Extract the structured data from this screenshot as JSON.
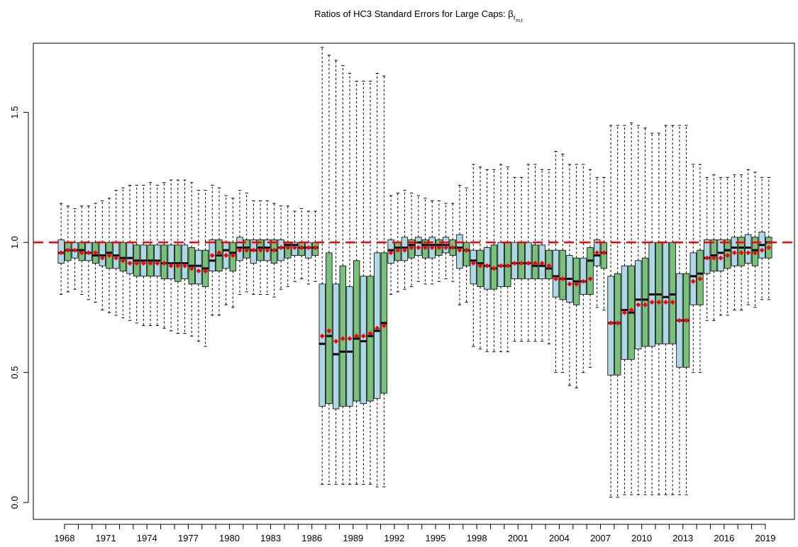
{
  "chart_data": {
    "type": "boxplot",
    "title": "Ratios of HC3 Standard Errors for Large Caps: ",
    "title_symbol": "β",
    "title_subscript": "r",
    "title_subsubscript": "m,t",
    "categories": [
      "1968",
      null,
      null,
      "1971",
      null,
      null,
      "1974",
      null,
      null,
      "1977",
      null,
      null,
      "1980",
      null,
      null,
      "1983",
      null,
      null,
      "1986",
      null,
      null,
      "1989",
      null,
      null,
      "1992",
      null,
      null,
      "1995",
      null,
      null,
      "1998",
      null,
      null,
      "2001",
      null,
      null,
      "2004",
      null,
      null,
      "2007",
      null,
      null,
      "2010",
      null,
      null,
      "2013",
      null,
      null,
      "2016",
      null,
      null,
      "2019"
    ],
    "ylim": [
      -0.065,
      1.766
    ],
    "yticks": [
      {
        "value": 0,
        "label": "0.0"
      },
      0.5,
      {
        "value": 1,
        "label": "1.0"
      },
      1.5
    ],
    "reference_line": 1,
    "reference_color": "#ff0000",
    "mean_color": "#ff0000",
    "series": [
      {
        "color": "#add8e6",
        "q1": [
          0.92,
          0.94,
          0.93,
          0.91,
          0.9,
          0.88,
          0.87,
          0.87,
          0.86,
          0.86,
          0.84,
          0.89,
          0.9,
          0.93,
          0.92,
          0.93,
          0.93,
          0.95,
          0.94,
          0.37,
          0.36,
          0.37,
          0.38,
          0.4,
          0.92,
          0.93,
          0.95,
          0.94,
          0.96,
          0.9,
          0.84,
          0.82,
          0.83,
          0.86,
          0.86,
          0.86,
          0.79,
          0.77,
          0.8,
          0.91,
          0.49,
          0.55,
          0.59,
          0.6,
          0.61,
          0.52,
          0.76,
          0.88,
          0.89,
          0.91,
          0.92,
          0.94
        ],
        "median": [
          0.96,
          0.97,
          0.96,
          0.95,
          0.95,
          0.94,
          0.93,
          0.93,
          0.92,
          0.92,
          0.91,
          0.93,
          0.97,
          0.98,
          0.97,
          0.98,
          0.98,
          0.99,
          0.98,
          0.61,
          0.57,
          0.58,
          0.62,
          0.66,
          0.97,
          0.98,
          1.0,
          0.99,
          0.99,
          0.98,
          0.93,
          0.91,
          0.91,
          0.92,
          0.92,
          0.91,
          0.87,
          0.86,
          0.85,
          0.95,
          0.69,
          0.74,
          0.78,
          0.8,
          0.79,
          0.7,
          0.87,
          0.94,
          0.96,
          0.98,
          0.98,
          0.99
        ],
        "q3": [
          1.01,
          1.0,
          1.0,
          1.0,
          1.0,
          1.0,
          0.99,
          0.99,
          0.99,
          0.99,
          0.97,
          1.01,
          1.0,
          1.02,
          1.01,
          1.01,
          1.01,
          1.0,
          1.0,
          0.84,
          0.84,
          0.83,
          0.87,
          0.96,
          1.01,
          1.02,
          1.02,
          1.02,
          1.02,
          1.03,
          0.97,
          0.98,
          1.0,
          1.0,
          1.0,
          0.99,
          0.97,
          0.95,
          0.94,
          1.01,
          0.87,
          0.91,
          0.93,
          1.0,
          1.0,
          0.88,
          0.96,
          1.01,
          1.01,
          1.02,
          1.03,
          1.04
        ],
        "whislo": [
          0.8,
          0.82,
          0.78,
          0.74,
          0.72,
          0.7,
          0.68,
          0.68,
          0.66,
          0.65,
          0.62,
          0.72,
          0.76,
          0.8,
          0.8,
          0.8,
          0.82,
          0.85,
          0.84,
          0.07,
          0.07,
          0.07,
          0.07,
          0.06,
          0.8,
          0.82,
          0.85,
          0.84,
          0.86,
          0.76,
          0.6,
          0.58,
          0.58,
          0.62,
          0.62,
          0.62,
          0.5,
          0.45,
          0.5,
          0.75,
          0.02,
          0.03,
          0.03,
          0.03,
          0.03,
          0.03,
          0.5,
          0.7,
          0.72,
          0.74,
          0.76,
          0.78
        ],
        "whishi": [
          1.15,
          1.13,
          1.14,
          1.16,
          1.2,
          1.22,
          1.22,
          1.22,
          1.24,
          1.24,
          1.2,
          1.22,
          1.18,
          1.2,
          1.16,
          1.16,
          1.14,
          1.12,
          1.12,
          1.75,
          1.7,
          1.65,
          1.62,
          1.65,
          1.18,
          1.2,
          1.18,
          1.16,
          1.15,
          1.22,
          1.3,
          1.28,
          1.3,
          1.25,
          1.3,
          1.28,
          1.35,
          1.3,
          1.3,
          1.25,
          1.45,
          1.45,
          1.45,
          1.42,
          1.45,
          1.45,
          1.3,
          1.25,
          1.25,
          1.26,
          1.28,
          1.25
        ],
        "mean": [
          0.96,
          0.97,
          0.96,
          0.94,
          0.94,
          0.92,
          0.92,
          0.92,
          0.91,
          0.91,
          0.89,
          0.95,
          0.95,
          0.97,
          0.97,
          0.97,
          0.98,
          0.98,
          0.98,
          0.64,
          0.62,
          0.63,
          0.64,
          0.67,
          0.96,
          0.97,
          0.98,
          0.98,
          0.98,
          0.97,
          0.92,
          0.91,
          0.91,
          0.92,
          0.92,
          0.92,
          0.86,
          0.84,
          0.85,
          0.96,
          0.69,
          0.73,
          0.76,
          0.77,
          0.77,
          0.7,
          0.85,
          0.94,
          0.94,
          0.96,
          0.96,
          0.97
        ]
      },
      {
        "color": "#77c17a",
        "q1": [
          0.93,
          0.93,
          0.92,
          0.9,
          0.89,
          0.87,
          0.87,
          0.86,
          0.85,
          0.84,
          0.83,
          0.89,
          0.89,
          0.94,
          0.93,
          0.92,
          0.94,
          0.95,
          0.95,
          0.38,
          0.37,
          0.39,
          0.39,
          0.42,
          0.93,
          0.94,
          0.94,
          0.95,
          0.95,
          0.91,
          0.83,
          0.82,
          0.83,
          0.86,
          0.86,
          0.86,
          0.78,
          0.76,
          0.8,
          0.9,
          0.49,
          0.55,
          0.6,
          0.61,
          0.61,
          0.52,
          0.76,
          0.89,
          0.9,
          0.91,
          0.91,
          0.94
        ],
        "median": [
          0.97,
          0.97,
          0.95,
          0.96,
          0.94,
          0.93,
          0.93,
          0.92,
          0.92,
          0.91,
          0.9,
          0.95,
          0.96,
          0.98,
          0.98,
          0.97,
          0.99,
          0.98,
          0.98,
          0.64,
          0.58,
          0.63,
          0.64,
          0.69,
          0.98,
          0.99,
          0.99,
          0.99,
          0.98,
          0.97,
          0.92,
          0.9,
          0.91,
          0.92,
          0.91,
          0.9,
          0.86,
          0.85,
          0.93,
          0.96,
          0.69,
          0.73,
          0.78,
          0.8,
          0.8,
          0.7,
          0.88,
          0.95,
          0.97,
          0.98,
          0.97,
          1.0
        ],
        "q3": [
          1.0,
          1.0,
          1.0,
          1.0,
          1.0,
          0.99,
          0.99,
          0.99,
          0.99,
          0.98,
          0.97,
          1.01,
          1.0,
          1.01,
          1.01,
          1.01,
          1.0,
          1.0,
          1.0,
          0.96,
          0.91,
          0.93,
          0.87,
          0.96,
          1.0,
          1.01,
          1.01,
          1.01,
          1.01,
          1.0,
          0.97,
          0.99,
          1.0,
          1.0,
          0.99,
          0.97,
          0.97,
          0.94,
          0.98,
          1.0,
          0.88,
          0.91,
          0.94,
          1.0,
          1.0,
          0.88,
          0.97,
          1.01,
          1.01,
          1.02,
          1.02,
          1.02
        ],
        "whislo": [
          0.81,
          0.8,
          0.77,
          0.73,
          0.71,
          0.69,
          0.68,
          0.67,
          0.65,
          0.64,
          0.6,
          0.72,
          0.75,
          0.81,
          0.8,
          0.79,
          0.83,
          0.86,
          0.85,
          0.07,
          0.07,
          0.07,
          0.07,
          0.06,
          0.81,
          0.83,
          0.84,
          0.85,
          0.85,
          0.77,
          0.59,
          0.58,
          0.58,
          0.62,
          0.62,
          0.61,
          0.5,
          0.44,
          0.52,
          0.74,
          0.02,
          0.03,
          0.03,
          0.03,
          0.03,
          0.03,
          0.5,
          0.7,
          0.72,
          0.74,
          0.75,
          0.78
        ],
        "whishi": [
          1.14,
          1.14,
          1.15,
          1.17,
          1.21,
          1.22,
          1.23,
          1.23,
          1.24,
          1.23,
          1.2,
          1.21,
          1.17,
          1.19,
          1.16,
          1.15,
          1.14,
          1.13,
          1.12,
          1.72,
          1.68,
          1.62,
          1.62,
          1.64,
          1.19,
          1.19,
          1.17,
          1.16,
          1.15,
          1.21,
          1.29,
          1.28,
          1.29,
          1.25,
          1.3,
          1.28,
          1.34,
          1.3,
          1.28,
          1.25,
          1.45,
          1.46,
          1.44,
          1.42,
          1.45,
          1.45,
          1.3,
          1.26,
          1.25,
          1.26,
          1.27,
          1.25
        ],
        "mean": [
          0.97,
          0.96,
          0.96,
          0.95,
          0.93,
          0.92,
          0.92,
          0.92,
          0.91,
          0.9,
          0.89,
          0.96,
          0.95,
          0.97,
          0.97,
          0.97,
          0.98,
          0.98,
          0.98,
          0.66,
          0.63,
          0.64,
          0.65,
          0.68,
          0.97,
          0.98,
          0.98,
          0.98,
          0.98,
          0.97,
          0.91,
          0.9,
          0.91,
          0.92,
          0.92,
          0.91,
          0.86,
          0.84,
          0.86,
          0.96,
          0.69,
          0.74,
          0.76,
          0.77,
          0.77,
          0.7,
          0.86,
          0.94,
          0.95,
          0.96,
          0.96,
          0.98
        ]
      }
    ]
  }
}
